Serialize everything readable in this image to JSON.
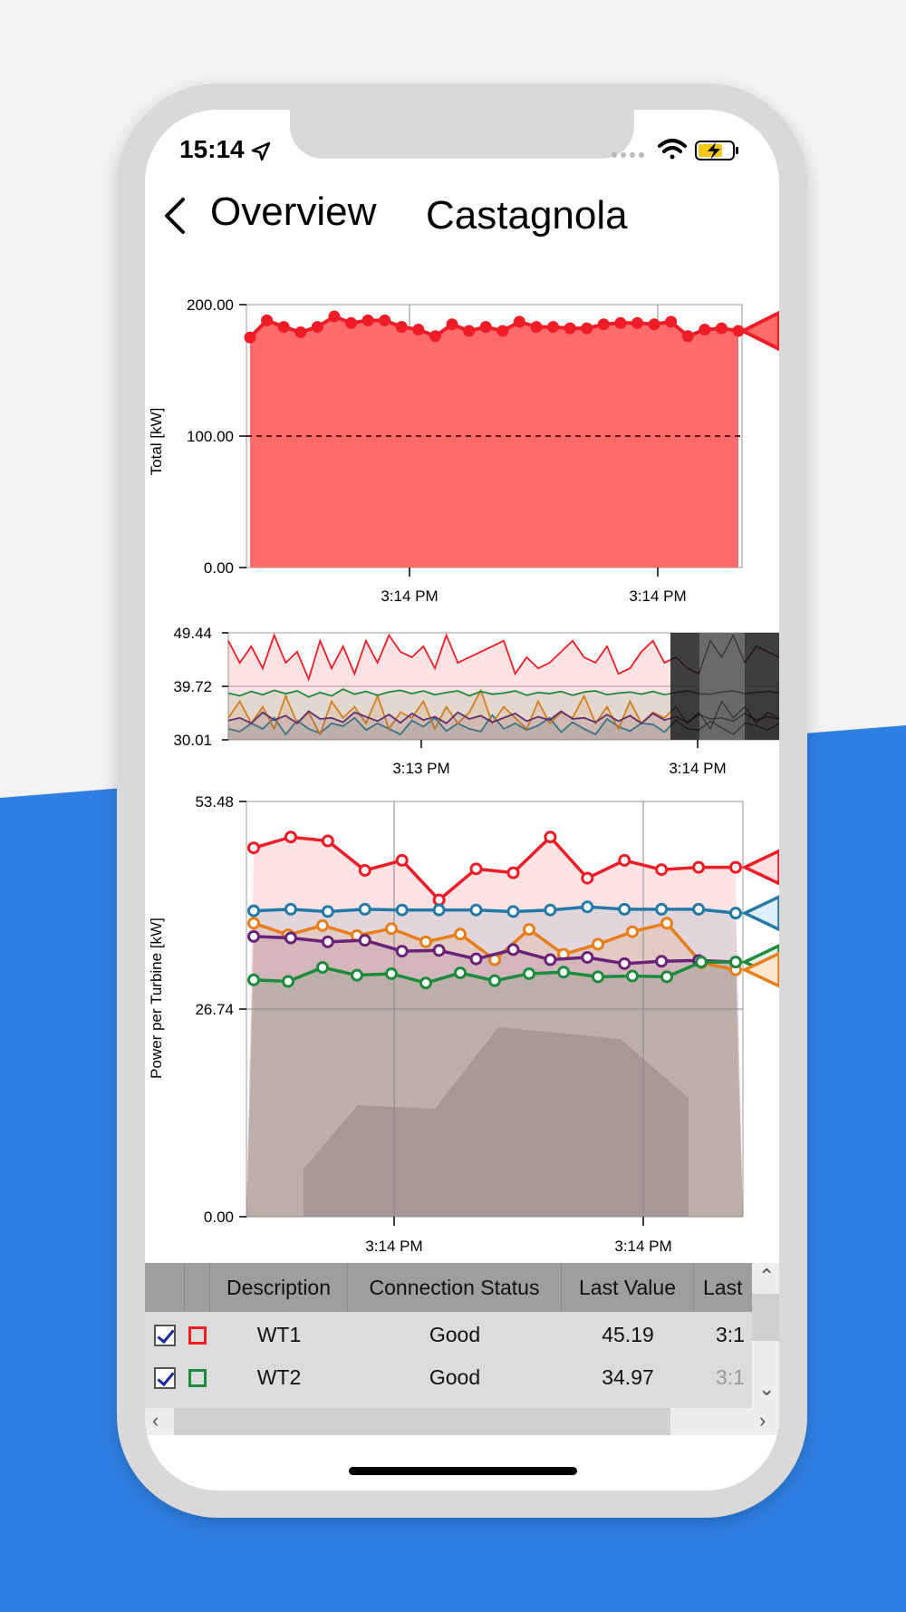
{
  "status_bar": {
    "time": "15:14"
  },
  "nav": {
    "back_label": "Overview",
    "title": "Castagnola"
  },
  "colors": {
    "wt1": "#ee1c25",
    "wt2": "#1e8a3c",
    "wt3": "#e87e1a",
    "wt4": "#2479a6",
    "wt5": "#6a2178",
    "total_fill": "#ff6b6b",
    "background_blue": "#2e7fe3"
  },
  "chart_data": [
    {
      "type": "area",
      "ylabel": "Total [kW]",
      "y_ticks": [
        "200.00",
        "100.00",
        "0.00"
      ],
      "x_ticks": [
        "3:14 PM",
        "3:14 PM"
      ],
      "ylim": [
        0,
        200
      ],
      "reference_line": 100,
      "series": [
        {
          "values": [
            175,
            188,
            183,
            179,
            183,
            191,
            186,
            188,
            188,
            183,
            181,
            176,
            185,
            180,
            183,
            180,
            187,
            183,
            183,
            182,
            182,
            185,
            186,
            186,
            185,
            187,
            176,
            181,
            182,
            180
          ]
        }
      ]
    },
    {
      "type": "line",
      "y_ticks": [
        "49.44",
        "39.72",
        "30.01"
      ],
      "x_ticks": [
        "3:13 PM",
        "3:14 PM"
      ],
      "ylim": [
        30.01,
        49.44
      ],
      "series": [
        {
          "values": [
            48,
            44,
            47,
            43,
            49,
            44,
            46,
            41,
            48,
            43,
            47,
            42,
            48,
            44,
            49,
            46,
            45,
            47,
            43,
            49,
            44,
            45,
            46,
            47,
            48,
            42,
            45,
            43,
            44,
            46,
            48,
            45,
            44,
            47,
            42,
            43,
            46,
            48,
            44,
            45,
            43,
            42,
            48,
            45,
            49,
            44,
            47,
            46,
            45
          ]
        },
        {
          "values": [
            38.5,
            38,
            38.8,
            38.2,
            39,
            38.4,
            38.9,
            37.8,
            38.6,
            38,
            39.2,
            38.3,
            38.8,
            38.1,
            38.7,
            39,
            38.4,
            38.9,
            38.2,
            38.6,
            38.9,
            38,
            38.8,
            38.3,
            38.5,
            38.9,
            38.1,
            38.6,
            38.4,
            38.8,
            38.1,
            38.7,
            38.9,
            38.2,
            38.5,
            38.7,
            38.3,
            38.8,
            38.2,
            38.6,
            38.9,
            38.4,
            38.3,
            38.7,
            38.9,
            38.4,
            38.6,
            38.8,
            38.5
          ]
        },
        {
          "values": [
            34,
            37,
            33,
            36,
            32,
            38,
            33,
            35,
            31,
            37,
            34,
            36,
            33,
            38,
            32,
            35,
            34,
            37,
            32,
            36,
            33,
            35,
            39,
            33,
            36,
            34,
            32,
            37,
            33,
            35,
            34,
            38,
            33,
            36,
            32,
            37,
            33,
            35,
            34,
            36,
            33,
            35,
            32,
            37,
            34,
            36,
            33,
            35,
            34
          ]
        },
        {
          "values": [
            32,
            31.5,
            33,
            32,
            34,
            31,
            33.5,
            32,
            31.2,
            33,
            32.5,
            34,
            31.8,
            33,
            32,
            31,
            33.5,
            32.4,
            34,
            31.6,
            33,
            32,
            31.5,
            34.5,
            32,
            33,
            31.8,
            32.6,
            34,
            31.4,
            33.2,
            32,
            31,
            33.8,
            32.4,
            31.6,
            33,
            32.8,
            31.4,
            33.6,
            32,
            31.8,
            33.4,
            32.2,
            31,
            33,
            32.6,
            31.8,
            33
          ]
        },
        {
          "values": [
            33.5,
            34,
            33,
            35,
            33.6,
            34.4,
            33,
            35.2,
            33.8,
            34,
            33.2,
            35,
            34.2,
            33.4,
            34.6,
            33.1,
            34.8,
            33.6,
            34.2,
            33,
            35,
            33.8,
            34.4,
            33.2,
            34,
            34.8,
            33.4,
            34.2,
            33.6,
            35.2,
            33.8,
            34,
            33.2,
            34.6,
            33.4,
            34.4,
            33,
            34.8,
            33.6,
            34.2,
            33.2,
            34.6,
            33.8,
            34,
            33.4,
            34.8,
            33.6,
            34.2,
            33.8
          ]
        }
      ]
    },
    {
      "type": "line",
      "ylabel": "Power per Turbine [kW]",
      "y_ticks": [
        "53.48",
        "26.74",
        "0.00"
      ],
      "x_ticks": [
        "3:14 PM",
        "3:14 PM"
      ],
      "ylim": [
        0,
        53.48
      ],
      "series": [
        {
          "values": [
            47.5,
            48.9,
            48.4,
            44.6,
            45.9,
            40.8,
            44.8,
            44.3,
            48.9,
            43.6,
            45.9,
            44.7,
            45.0,
            45.0
          ]
        },
        {
          "values": [
            30.5,
            30.3,
            32.1,
            31.1,
            31.3,
            30.1,
            31.4,
            30.4,
            31.3,
            31.5,
            30.9,
            31.0,
            30.9,
            32.8,
            32.8
          ]
        },
        {
          "values": [
            37.8,
            36.3,
            37.5,
            36.2,
            37.1,
            35.4,
            36.4,
            33.1,
            37.0,
            33.8,
            35.1,
            36.7,
            37.8,
            32.7,
            31.8
          ]
        },
        {
          "values": [
            39.4,
            39.6,
            39.3,
            39.6,
            39.5,
            39.5,
            39.5,
            39.3,
            39.5,
            39.9,
            39.6,
            39.6,
            39.6,
            39.1
          ]
        },
        {
          "values": [
            36.1,
            35.9,
            35.4,
            35.6,
            34.2,
            34.3,
            33.2,
            34.4,
            33.1,
            33.4,
            32.6,
            32.9,
            33.0,
            32.8
          ]
        }
      ]
    }
  ],
  "table": {
    "columns": [
      "Description",
      "Connection Status",
      "Last Value",
      "Last"
    ],
    "rows": [
      {
        "description": "WT1",
        "status": "Good",
        "last_value": "45.19",
        "last_time": "3:1",
        "swatch_color": "#ee1c25"
      },
      {
        "description": "WT2",
        "status": "Good",
        "last_value": "34.97",
        "last_time": "3:1",
        "swatch_color": "#1e8a3c"
      }
    ]
  },
  "icons": [
    "location-arrow-icon",
    "wifi-icon",
    "battery-charging-icon",
    "back-chevron-icon",
    "checkbox-icon",
    "scroll-arrow-icon"
  ]
}
